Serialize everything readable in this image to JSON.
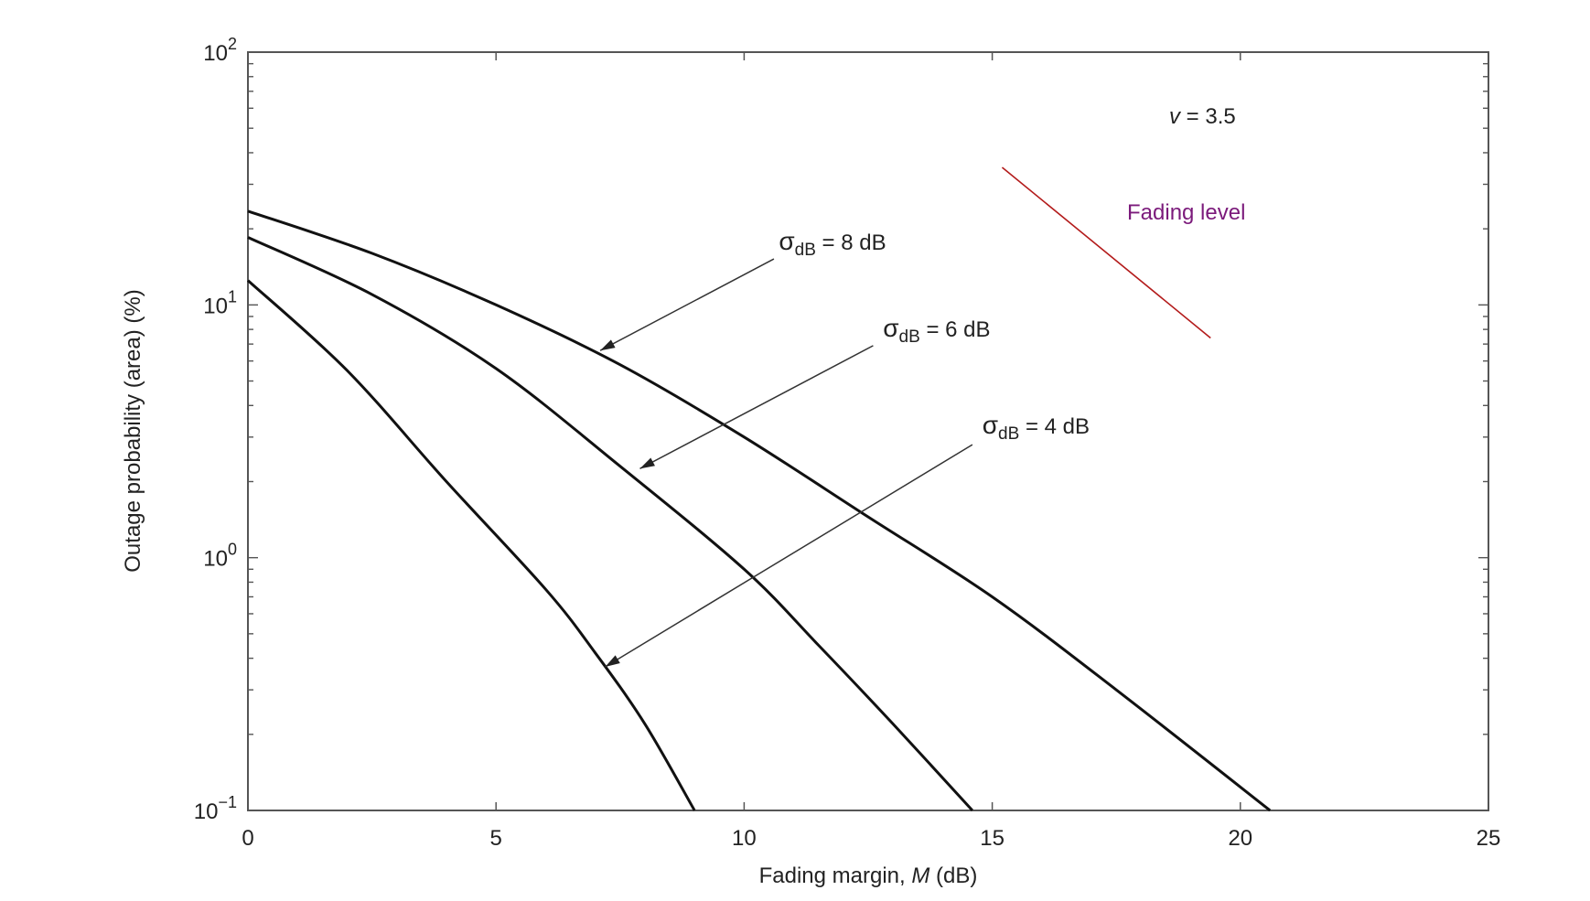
{
  "chart_data": {
    "type": "line",
    "xlabel": {
      "main": "Fading margin, ",
      "var": "M",
      "unit": " (dB)"
    },
    "ylabel": "Outage probability (area) (%)",
    "xlim": [
      0,
      25
    ],
    "ylim": [
      0.1,
      100
    ],
    "yscale": "log",
    "grid": false,
    "x_ticks": [
      0,
      5,
      10,
      15,
      20,
      25
    ],
    "x_tick_labels": [
      "0",
      "5",
      "10",
      "15",
      "20",
      "25"
    ],
    "y_ticks": [
      0.1,
      1,
      10,
      100
    ],
    "y_tick_labels": [
      {
        "base": "10",
        "exp": "−1"
      },
      {
        "base": "10",
        "exp": "0"
      },
      {
        "base": "10",
        "exp": "1"
      },
      {
        "base": "10",
        "exp": "2"
      }
    ],
    "series": [
      {
        "name": "σdB = 8 dB",
        "x": [
          0,
          2.5,
          5,
          7.5,
          10,
          12.5,
          15,
          17.5,
          20.6
        ],
        "y": [
          23.5,
          16,
          10,
          5.8,
          3.0,
          1.45,
          0.7,
          0.3,
          0.1
        ]
      },
      {
        "name": "σdB = 6 dB",
        "x": [
          0,
          2.5,
          5,
          7.5,
          10,
          11.5,
          13,
          14.6
        ],
        "y": [
          18.5,
          11,
          5.6,
          2.3,
          0.9,
          0.45,
          0.22,
          0.1
        ]
      },
      {
        "name": "σdB = 4 dB",
        "x": [
          0,
          2,
          4,
          6,
          7,
          8,
          9
        ],
        "y": [
          12.5,
          5.5,
          2.0,
          0.75,
          0.42,
          0.22,
          0.1
        ]
      }
    ],
    "annotations": [
      {
        "sym": "σ",
        "sub": "dB",
        "rest": " = 8 dB",
        "text_at": [
          10.7,
          16.5
        ],
        "arrow_from": [
          10.6,
          15.2
        ],
        "arrow_to": [
          7.1,
          6.6
        ]
      },
      {
        "sym": "σ",
        "sub": "dB",
        "rest": " = 6 dB",
        "text_at": [
          12.8,
          7.5
        ],
        "arrow_from": [
          12.6,
          6.9
        ],
        "arrow_to": [
          7.9,
          2.25
        ]
      },
      {
        "sym": "σ",
        "sub": "dB",
        "rest": " = 4 dB",
        "text_at": [
          14.8,
          3.1
        ],
        "arrow_from": [
          14.6,
          2.8
        ],
        "arrow_to": [
          7.2,
          0.37
        ]
      }
    ],
    "parameter": {
      "var": "v",
      "rest": " = 3.5"
    },
    "overlay": {
      "label": "Fading level",
      "label_color": "#7b1a7b",
      "line_color": "#b31b1b",
      "line_from": [
        15.2,
        35
      ],
      "line_to": [
        19.4,
        7.4
      ]
    }
  }
}
